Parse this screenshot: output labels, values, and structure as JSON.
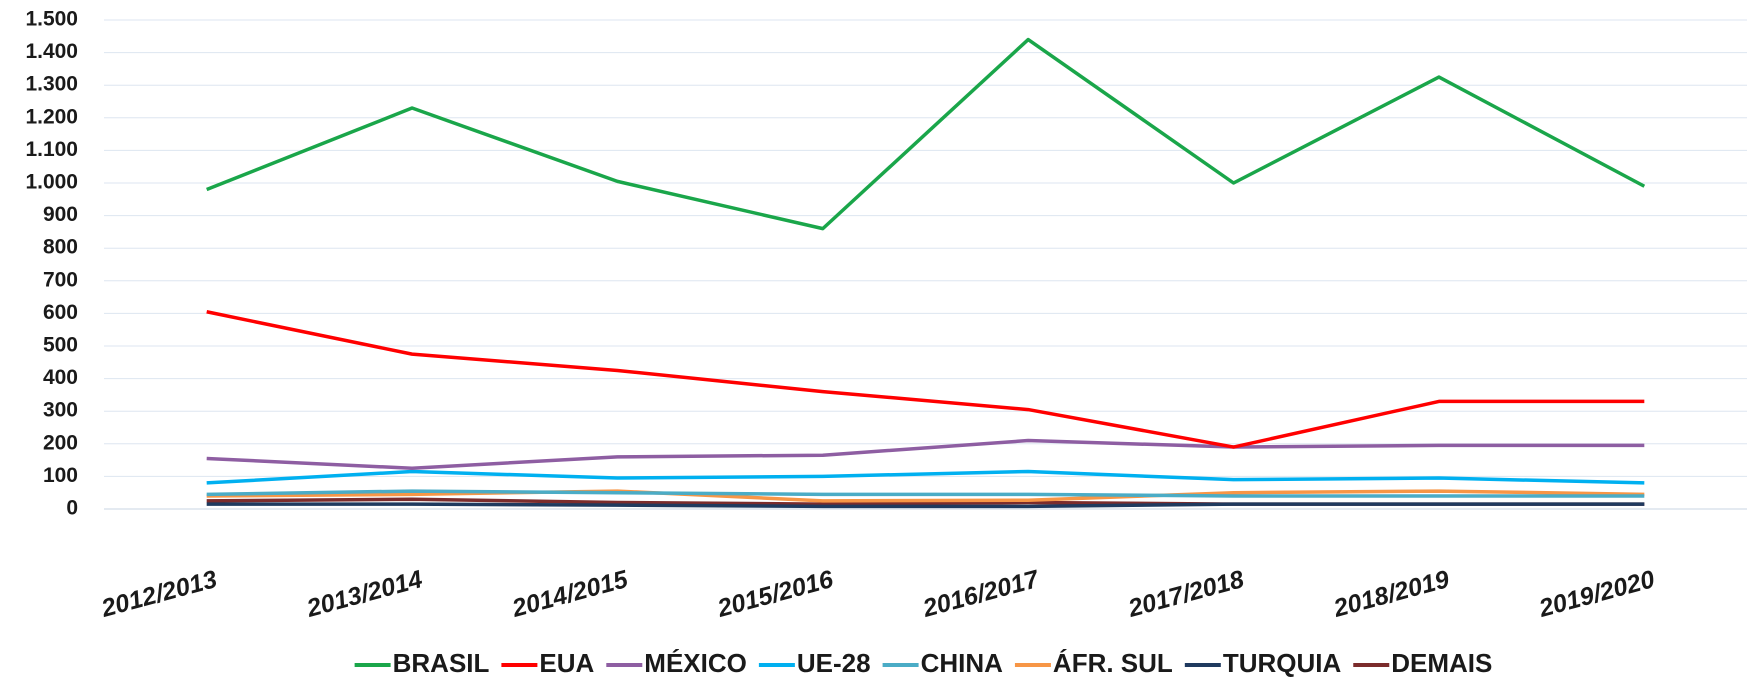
{
  "chart_data": {
    "type": "line",
    "categories": [
      "2012/2013",
      "2013/2014",
      "2014/2015",
      "2015/2016",
      "2016/2017",
      "2017/2018",
      "2018/2019",
      "2019/2020"
    ],
    "series": [
      {
        "name": "BRASIL",
        "color": "#1aa64a",
        "values": [
          980,
          1230,
          1005,
          860,
          1440,
          1000,
          1325,
          990
        ]
      },
      {
        "name": "EUA",
        "color": "#ff0000",
        "values": [
          605,
          475,
          425,
          360,
          305,
          190,
          330,
          330
        ]
      },
      {
        "name": "MÉXICO",
        "color": "#8e5ea2",
        "values": [
          155,
          125,
          160,
          165,
          210,
          190,
          195,
          195
        ]
      },
      {
        "name": "UE-28",
        "color": "#00b0f0",
        "values": [
          80,
          115,
          95,
          100,
          115,
          90,
          95,
          80
        ]
      },
      {
        "name": "CHINA",
        "color": "#4bacc6",
        "values": [
          45,
          55,
          50,
          45,
          45,
          40,
          40,
          40
        ]
      },
      {
        "name": "ÁFR. SUL",
        "color": "#f79646",
        "values": [
          40,
          45,
          55,
          25,
          27,
          50,
          55,
          45
        ]
      },
      {
        "name": "TURQUIA",
        "color": "#1f3a5f",
        "values": [
          15,
          15,
          12,
          8,
          8,
          15,
          15,
          15
        ]
      },
      {
        "name": "DEMAIS",
        "color": "#7b2c2c",
        "values": [
          25,
          30,
          20,
          15,
          20,
          15,
          15,
          15
        ]
      }
    ],
    "ylim": [
      0,
      1500
    ],
    "yticks": [
      0,
      100,
      200,
      300,
      400,
      500,
      600,
      700,
      800,
      900,
      {
        "value": 1000,
        "label": "1.000"
      },
      {
        "value": 1100,
        "label": "1.100"
      },
      {
        "value": 1200,
        "label": "1.200"
      },
      {
        "value": 1300,
        "label": "1.300"
      },
      {
        "value": 1400,
        "label": "1.400"
      },
      {
        "value": 1500,
        "label": "1.500"
      }
    ],
    "grid": true,
    "legend": "bottom"
  }
}
